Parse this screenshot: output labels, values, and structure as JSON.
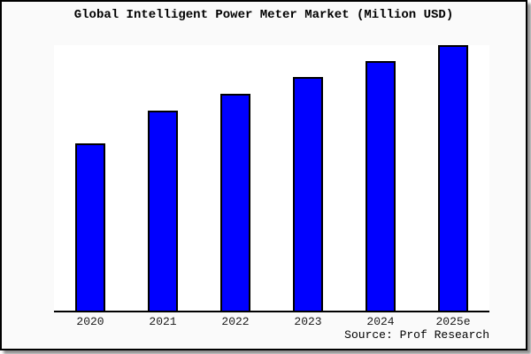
{
  "chart_data": {
    "type": "bar",
    "title": "Global Intelligent Power Meter Market (Million USD)",
    "categories": [
      "2020",
      "2021",
      "2022",
      "2023",
      "2024",
      "2025e"
    ],
    "values": [
      62.9,
      75.3,
      81.7,
      87.9,
      93.9,
      100
    ],
    "values_note": "No y-axis, tick values or data labels are shown in the chart; values are relative bar heights expressed as percent of the tallest bar (2025e = 100).",
    "xlabel": "",
    "ylabel": "",
    "ylim_relative": [
      0,
      100
    ],
    "legend": false,
    "gridlines": false,
    "bar_color": "#0000FF",
    "bar_border_color": "#000000",
    "axis_color": "#000000",
    "plot_background": "#FFFFFF",
    "outer_background": "#FAFAFA",
    "source": "Source: Prof Research"
  }
}
